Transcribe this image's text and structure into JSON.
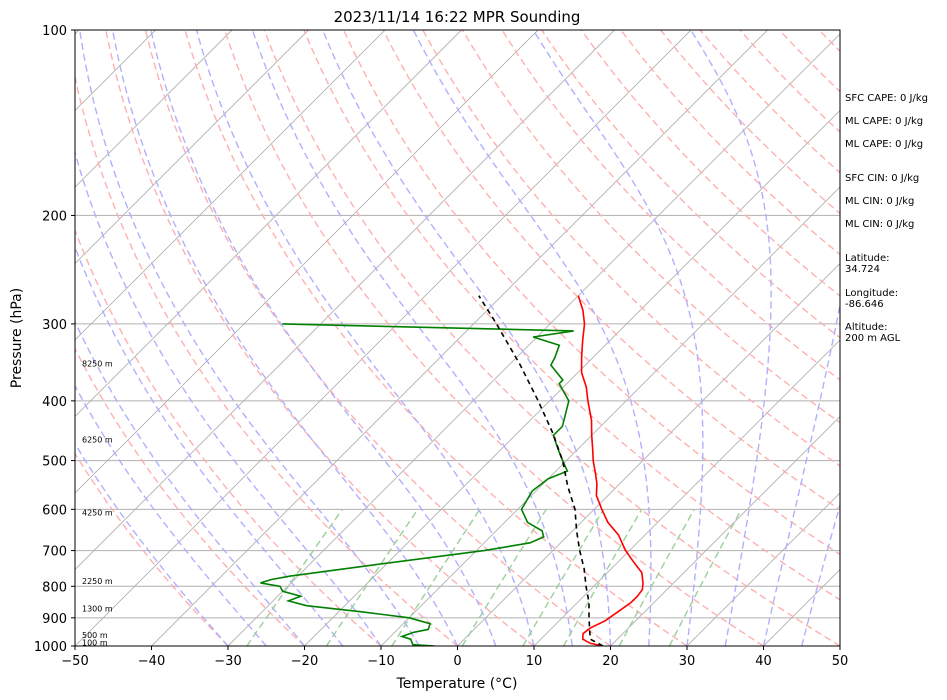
{
  "chart_data": {
    "type": "line",
    "title": "2023/11/14 16:22 MPR Sounding",
    "xlabel": "Temperature (°C)",
    "ylabel": "Pressure (hPa)",
    "xlim": [
      -50,
      50
    ],
    "ylim": [
      1000,
      100
    ],
    "y_scale": "log",
    "skew": true,
    "x_ticks": [
      -50,
      -40,
      -30,
      -20,
      -10,
      0,
      10,
      20,
      30,
      40,
      50
    ],
    "y_ticks": [
      100,
      200,
      300,
      400,
      500,
      600,
      700,
      800,
      900,
      1000
    ],
    "grid": true,
    "series": [
      {
        "color": "#ff0000",
        "points": [
          [
            1000,
            19.0
          ],
          [
            990,
            17.0
          ],
          [
            975,
            15.5
          ],
          [
            955,
            14.8
          ],
          [
            935,
            15.0
          ],
          [
            910,
            16.0
          ],
          [
            880,
            16.5
          ],
          [
            850,
            17.0
          ],
          [
            830,
            17.0
          ],
          [
            810,
            16.8
          ],
          [
            790,
            16.0
          ],
          [
            760,
            14.5
          ],
          [
            730,
            12.0
          ],
          [
            700,
            9.5
          ],
          [
            660,
            6.5
          ],
          [
            630,
            3.5
          ],
          [
            600,
            1.0
          ],
          [
            570,
            -1.5
          ],
          [
            545,
            -3.0
          ],
          [
            525,
            -4.5
          ],
          [
            500,
            -6.5
          ],
          [
            480,
            -8.0
          ],
          [
            455,
            -10.0
          ],
          [
            430,
            -12.0
          ],
          [
            400,
            -15.0
          ],
          [
            380,
            -17.0
          ],
          [
            360,
            -19.5
          ],
          [
            340,
            -21.5
          ],
          [
            320,
            -23.5
          ],
          [
            300,
            -25.5
          ],
          [
            285,
            -27.5
          ],
          [
            270,
            -30.0
          ]
        ]
      },
      {
        "color": "#008000",
        "points": [
          [
            1000,
            -3.0
          ],
          [
            995,
            -6.0
          ],
          [
            975,
            -7.0
          ],
          [
            965,
            -8.5
          ],
          [
            950,
            -7.5
          ],
          [
            940,
            -6.0
          ],
          [
            920,
            -6.5
          ],
          [
            900,
            -10.0
          ],
          [
            880,
            -17.0
          ],
          [
            860,
            -25.0
          ],
          [
            845,
            -28.0
          ],
          [
            830,
            -27.0
          ],
          [
            815,
            -30.0
          ],
          [
            800,
            -31.0
          ],
          [
            790,
            -34.0
          ],
          [
            780,
            -33.0
          ],
          [
            770,
            -31.0
          ],
          [
            740,
            -22.0
          ],
          [
            700,
            -9.0
          ],
          [
            680,
            -4.0
          ],
          [
            665,
            -3.0
          ],
          [
            650,
            -4.0
          ],
          [
            630,
            -7.0
          ],
          [
            600,
            -9.5
          ],
          [
            560,
            -10.5
          ],
          [
            535,
            -10.0
          ],
          [
            520,
            -8.5
          ],
          [
            500,
            -10.5
          ],
          [
            480,
            -12.5
          ],
          [
            455,
            -15.0
          ],
          [
            440,
            -15.0
          ],
          [
            400,
            -17.5
          ],
          [
            375,
            -21.0
          ],
          [
            370,
            -21.0
          ],
          [
            350,
            -24.5
          ],
          [
            340,
            -25.0
          ],
          [
            325,
            -26.0
          ],
          [
            315,
            -30.5
          ],
          [
            308,
            -26.0
          ],
          [
            300,
            -65.0
          ]
        ]
      },
      {
        "color": "#000000",
        "dash": true,
        "points": [
          [
            1000,
            19.0
          ],
          [
            975,
            16.5
          ],
          [
            950,
            15.5
          ],
          [
            900,
            13.5
          ],
          [
            850,
            11.5
          ],
          [
            800,
            9.0
          ],
          [
            750,
            6.5
          ],
          [
            700,
            3.5
          ],
          [
            650,
            0.5
          ],
          [
            600,
            -2.5
          ],
          [
            550,
            -6.5
          ],
          [
            500,
            -10.5
          ],
          [
            450,
            -15.5
          ],
          [
            400,
            -21.5
          ],
          [
            350,
            -28.5
          ],
          [
            300,
            -37.0
          ],
          [
            270,
            -43.0
          ]
        ]
      }
    ],
    "height_markers": [
      "100 m",
      "500 m",
      "1300 m",
      "2250 m",
      "4250 m",
      "6250 m",
      "8250 m"
    ],
    "colors": {
      "temperature": "#ff0000",
      "dewpoint": "#008000",
      "parcel": "#000000",
      "isotherm": "#b0b0b0",
      "dry_adiabat": "#ffb0b0",
      "moist_adiabat": "#b0b0ff",
      "mixing_ratio": "#9ccf9c"
    }
  },
  "info": {
    "sfc_cape": "SFC CAPE: 0 J/kg",
    "ml_cape_1": "ML CAPE: 0 J/kg",
    "ml_cape_2": "ML CAPE: 0 J/kg",
    "sfc_cin": "SFC CIN: 0 J/kg",
    "ml_cin_1": "ML CIN: 0 J/kg",
    "ml_cin_2": "ML CIN: 0 J/kg",
    "latitude": "Latitude:\n34.724",
    "longitude": "Longitude:\n-86.646",
    "altitude": "Altitude:\n200 m AGL"
  }
}
